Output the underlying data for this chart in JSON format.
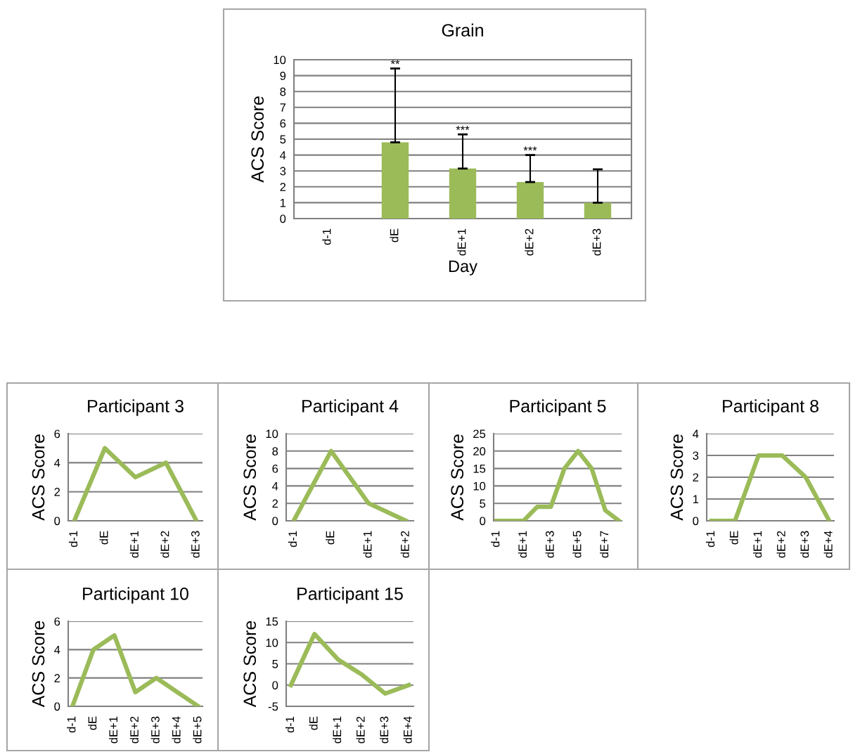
{
  "chart_data": [
    {
      "type": "bar",
      "title": "Grain",
      "xlabel": "Day",
      "ylabel": "ACS Score",
      "categories": [
        "d-1",
        "dE",
        "dE+1",
        "dE+2",
        "dE+3"
      ],
      "values": [
        0,
        4.8,
        3.15,
        2.3,
        1.0
      ],
      "errors": [
        null,
        [
          4.8,
          9.45
        ],
        [
          3.15,
          5.3
        ],
        [
          2.3,
          4.0
        ],
        [
          1.0,
          3.1
        ]
      ],
      "color": "#9bbb59",
      "ylim": [
        0,
        10
      ],
      "yticks": [
        0,
        1,
        2,
        3,
        4,
        5,
        6,
        7,
        8,
        9,
        10
      ],
      "grid": "y",
      "annotations": [
        {
          "text": "**",
          "x": "dE",
          "y": 9.45
        },
        {
          "text": "***",
          "x": "dE+1",
          "y": 5.3
        },
        {
          "text": "***",
          "x": "dE+2",
          "y": 4.0
        }
      ]
    },
    {
      "type": "line",
      "title": "Participant 3",
      "ylabel": "ACS Score",
      "categories": [
        "d-1",
        "dE",
        "dE+1",
        "dE+2",
        "dE+3"
      ],
      "values": [
        0,
        5,
        3,
        4,
        0
      ],
      "color": "#9bbb59",
      "ylim": [
        0,
        6
      ],
      "yticks": [
        0,
        2,
        4,
        6
      ],
      "grid": "y",
      "marker": "none"
    },
    {
      "type": "line",
      "title": "Participant 4",
      "ylabel": "ACS Score",
      "categories": [
        "d-1",
        "dE",
        "dE+1",
        "dE+2"
      ],
      "values": [
        0,
        8,
        2,
        0
      ],
      "color": "#9bbb59",
      "ylim": [
        0,
        10
      ],
      "yticks": [
        0,
        2,
        4,
        6,
        8,
        10
      ],
      "grid": "y",
      "marker": "none"
    },
    {
      "type": "line",
      "title": "Participant 5",
      "ylabel": "ACS Score",
      "categories": [
        "d-1",
        null,
        "dE+1",
        null,
        "dE+3",
        null,
        "dE+5",
        null,
        "dE+7",
        null
      ],
      "values": [
        0,
        0,
        0,
        4,
        4,
        15,
        20,
        15,
        3,
        0
      ],
      "color": "#9bbb59",
      "ylim": [
        0,
        25
      ],
      "yticks": [
        0,
        5,
        10,
        15,
        20,
        25
      ],
      "grid": "y",
      "marker": "none"
    },
    {
      "type": "line",
      "title": "Participant 8",
      "ylabel": "ACS Score",
      "categories": [
        "d-1",
        "dE",
        "dE+1",
        "dE+2",
        "dE+3",
        "dE+4"
      ],
      "values": [
        0,
        0,
        3,
        3,
        2,
        0
      ],
      "color": "#9bbb59",
      "ylim": [
        0,
        4
      ],
      "yticks": [
        0,
        1,
        2,
        3,
        4
      ],
      "grid": "y",
      "marker": "none"
    },
    {
      "type": "line",
      "title": "Participant 10",
      "ylabel": "ACS Score",
      "categories": [
        "d-1",
        "dE",
        "dE+1",
        "dE+2",
        "dE+3",
        "dE+4",
        "dE+5"
      ],
      "values": [
        0,
        4,
        5,
        1,
        2,
        1,
        0
      ],
      "color": "#9bbb59",
      "ylim": [
        0,
        6
      ],
      "yticks": [
        0,
        2,
        4,
        6
      ],
      "grid": "y",
      "marker": "none"
    },
    {
      "type": "line",
      "title": "Participant 15",
      "ylabel": "ACS Score",
      "categories": [
        "d-1",
        "dE",
        "dE+1",
        "dE+2",
        "dE+3",
        "dE+4"
      ],
      "values": [
        0,
        12,
        6,
        2.5,
        -2,
        0
      ],
      "color": "#9bbb59",
      "ylim": [
        -5,
        15
      ],
      "yticks": [
        -5,
        0,
        5,
        10,
        15
      ],
      "grid": "y",
      "marker": "none"
    }
  ]
}
